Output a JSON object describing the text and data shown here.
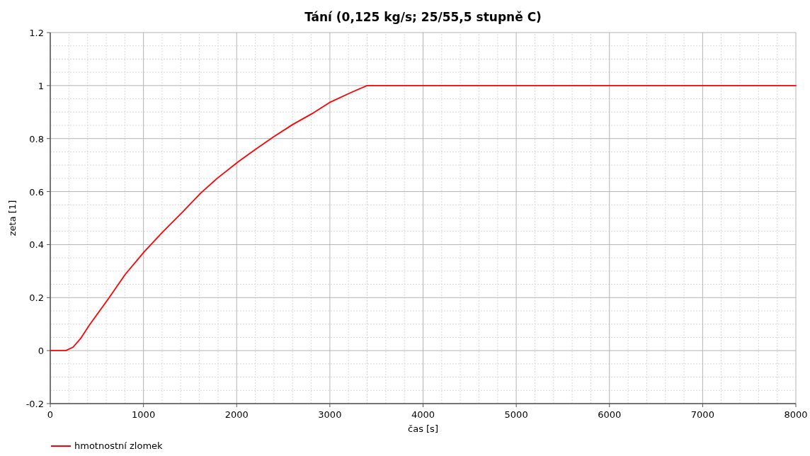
{
  "chart_data": {
    "type": "line",
    "title": "Tání (0,125 kg/s; 25/55,5 stupně C)",
    "xlabel": "čas [s]",
    "ylabel": "zeta [1]",
    "xlim": [
      0,
      8000
    ],
    "xticks": [
      0,
      1000,
      2000,
      3000,
      4000,
      5000,
      6000,
      7000,
      8000
    ],
    "ylim": [
      -0.2,
      1.2
    ],
    "yticks": [
      -0.2,
      0,
      0.2,
      0.4,
      0.6,
      0.8,
      1,
      1.2
    ],
    "grid": true,
    "legend": "bottom left",
    "line_style": "solid",
    "marker": "none",
    "series": [
      {
        "name": "hmotnostní zlomek",
        "color": "#ff0000",
        "x": [
          0,
          167,
          245,
          322,
          423,
          626,
          803,
          1006,
          1208,
          1411,
          1613,
          1791,
          2019,
          2196,
          2399,
          2601,
          2804,
          3007,
          3209,
          3399,
          4000,
          5000,
          6000,
          7000,
          8000
        ],
        "values": [
          0,
          0,
          0.013,
          0.044,
          0.098,
          0.197,
          0.287,
          0.372,
          0.448,
          0.52,
          0.594,
          0.65,
          0.713,
          0.758,
          0.807,
          0.853,
          0.893,
          0.938,
          0.971,
          1,
          1,
          1,
          1,
          1,
          1
        ]
      }
    ]
  }
}
